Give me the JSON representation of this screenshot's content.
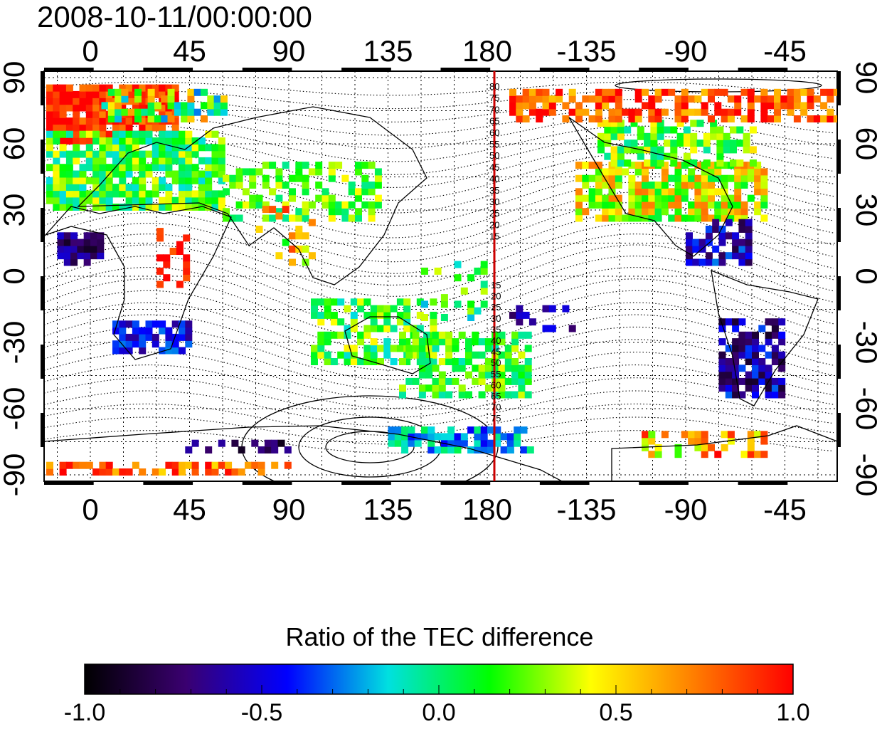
{
  "timestamp": "2008-10-11/00:00:00",
  "map": {
    "top_lon_labels": [
      "0",
      "45",
      "90",
      "135",
      "180",
      "-135",
      "-90",
      "-45"
    ],
    "bottom_lon_labels": [
      "0",
      "45",
      "90",
      "135",
      "180",
      "-135",
      "-90",
      "-45"
    ],
    "left_lat_labels": [
      "90",
      "60",
      "30",
      "0",
      "-30",
      "-60",
      "-90"
    ],
    "right_lat_labels": [
      "90",
      "60",
      "30",
      "0",
      "-30",
      "-60",
      "-90"
    ],
    "contour_labels_north": [
      "80",
      "75",
      "70",
      "65",
      "60",
      "55",
      "50",
      "45",
      "40",
      "35",
      "30",
      "25",
      "20",
      "15"
    ],
    "contour_labels_south": [
      "15",
      "20",
      "25",
      "30",
      "35",
      "40",
      "45",
      "50",
      "55",
      "60",
      "65",
      "70",
      "75"
    ],
    "meridian_line_color": "#cc0000",
    "coastline_color": "#000000"
  },
  "colorbar": {
    "title": "Ratio of the TEC difference",
    "tick_labels": [
      "-1.0",
      "-0.5",
      "0.0",
      "0.5",
      "1.0"
    ],
    "range": [
      -1.0,
      1.0
    ],
    "colors": [
      "#000000",
      "#3a0070",
      "#0000ff",
      "#00e0e0",
      "#00ff00",
      "#ffff00",
      "#ff8000",
      "#ff0000"
    ]
  }
}
